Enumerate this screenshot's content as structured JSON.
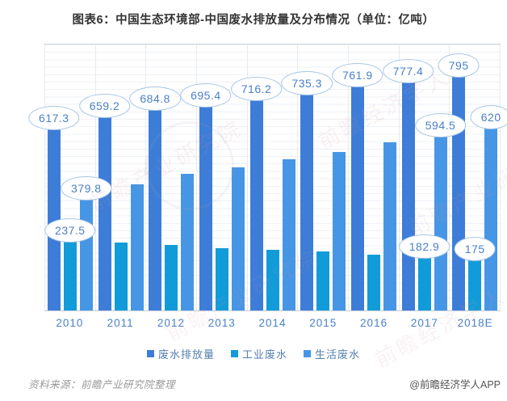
{
  "title": "图表6：中国生态环境部-中国废水排放量及分布情况（单位：亿吨）",
  "footer": {
    "source": "资料来源：前瞻产业研究院整理",
    "credit": "@前瞻经济学人APP"
  },
  "watermarks": [
    "前瞻产业研究院",
    "前瞻经济学人"
  ],
  "colors": {
    "total_bar": "#3d7dd8",
    "industrial_bar": "#119cd9",
    "domestic_bar": "#4696e5",
    "bubble_border": "#a9c6e6",
    "bubble_text": "#4a80c9",
    "axis_label": "#4a80c8",
    "legend_text": "#567fae",
    "title_text": "#333333"
  },
  "chart_data": {
    "type": "bar",
    "title": "图表6：中国生态环境部-中国废水排放量及分布情况（单位：亿吨）",
    "xlabel": "",
    "ylabel": "亿吨",
    "ylim": [
      0,
      900
    ],
    "grid": true,
    "legend_position": "bottom",
    "categories": [
      "2010",
      "2011",
      "2012",
      "2013",
      "2014",
      "2015",
      "2016",
      "2017",
      "2018E"
    ],
    "series": [
      {
        "name": "废水排放量",
        "color": "#3d7dd8",
        "values": [
          617.3,
          659.2,
          684.8,
          695.4,
          716.2,
          735.3,
          761.9,
          777.4,
          795
        ],
        "labeled": [
          0,
          1,
          2,
          3,
          4,
          5,
          6,
          7,
          8
        ]
      },
      {
        "name": "工业废水",
        "color": "#119cd9",
        "values": [
          237.5,
          231,
          222,
          210,
          205,
          199.5,
          190,
          182.9,
          175
        ],
        "labeled": [
          0,
          7,
          8
        ]
      },
      {
        "name": "生活废水",
        "color": "#4696e5",
        "values": [
          379.8,
          428,
          463,
          485,
          511,
          536,
          570,
          594.5,
          620
        ],
        "labeled": [
          0,
          7,
          8
        ]
      }
    ]
  }
}
